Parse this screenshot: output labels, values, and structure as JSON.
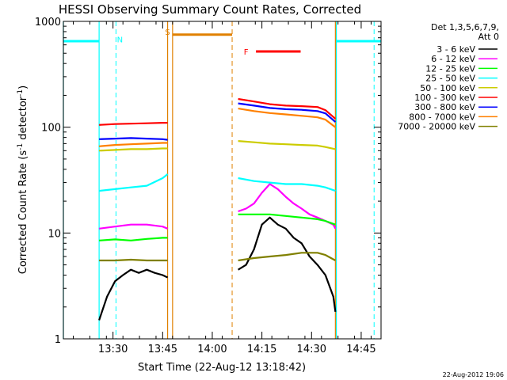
{
  "chart_data": {
    "type": "line",
    "title": "HESSI Observing Summary Count Rates, Corrected",
    "xlabel": "Start Time (22-Aug-12 13:18:42)",
    "ylabel_main": "Corrected Count Rate (s",
    "ylabel_sup1": "-1",
    "ylabel_mid": " detector",
    "ylabel_sup2": "-1",
    "ylabel_end": ")",
    "y_scale": "log",
    "ylim": [
      1,
      1000
    ],
    "x_range_min": [
      13.25,
      14.85
    ],
    "y_ticks": [
      {
        "value": 1,
        "label": "1"
      },
      {
        "value": 10,
        "label": "10"
      },
      {
        "value": 100,
        "label": "100"
      },
      {
        "value": 1000,
        "label": "1000"
      }
    ],
    "x_ticks": [
      {
        "value": 13.5,
        "label": "13:30"
      },
      {
        "value": 13.75,
        "label": "13:45"
      },
      {
        "value": 14.0,
        "label": "14:00"
      },
      {
        "value": 14.25,
        "label": "14:15"
      },
      {
        "value": 14.5,
        "label": "14:30"
      },
      {
        "value": 14.75,
        "label": "14:45"
      }
    ],
    "legend_header": [
      "Det 1,3,5,6,7,9,",
      "Att 0"
    ],
    "legend_position": "right",
    "series": [
      {
        "name": "3 - 6 keV",
        "color": "#000000",
        "segments": [
          {
            "x": [
              13.43,
              13.47,
              13.51,
              13.55,
              13.59,
              13.63,
              13.67,
              13.71,
              13.75,
              13.775
            ],
            "y": [
              1.5,
              2.5,
              3.5,
              4.0,
              4.5,
              4.2,
              4.5,
              4.2,
              4.0,
              3.8
            ]
          },
          {
            "x": [
              14.13,
              14.17,
              14.21,
              14.25,
              14.29,
              14.33,
              14.37,
              14.41,
              14.45,
              14.49,
              14.53,
              14.57,
              14.61,
              14.62
            ],
            "y": [
              4.5,
              5.0,
              7.0,
              12.0,
              14.0,
              12.0,
              11.0,
              9.0,
              8.0,
              6.0,
              5.0,
              4.0,
              2.5,
              1.8
            ]
          }
        ]
      },
      {
        "name": "6 - 12 keV",
        "color": "#ff00ff",
        "segments": [
          {
            "x": [
              13.43,
              13.51,
              13.59,
              13.67,
              13.75,
              13.775
            ],
            "y": [
              11,
              11.5,
              12,
              12,
              11.5,
              11
            ]
          },
          {
            "x": [
              14.13,
              14.17,
              14.21,
              14.25,
              14.29,
              14.33,
              14.37,
              14.41,
              14.45,
              14.49,
              14.53,
              14.57,
              14.61,
              14.62
            ],
            "y": [
              16,
              17,
              19,
              24,
              29,
              26,
              22,
              19,
              17,
              15,
              14,
              13,
              12,
              11
            ]
          }
        ]
      },
      {
        "name": "12 - 25 keV",
        "color": "#00ff00",
        "segments": [
          {
            "x": [
              13.43,
              13.51,
              13.59,
              13.67,
              13.75,
              13.775
            ],
            "y": [
              8.5,
              8.7,
              8.5,
              8.8,
              9.0,
              9.0
            ]
          },
          {
            "x": [
              14.13,
              14.21,
              14.29,
              14.37,
              14.45,
              14.53,
              14.57,
              14.62
            ],
            "y": [
              15,
              15,
              15,
              14.5,
              14,
              13.5,
              13,
              12
            ]
          }
        ]
      },
      {
        "name": "25 - 50 keV",
        "color": "#00ffff",
        "segments": [
          {
            "x": [
              13.43,
              13.51,
              13.59,
              13.67,
              13.75,
              13.775
            ],
            "y": [
              25,
              26,
              27,
              28,
              33,
              36
            ]
          },
          {
            "x": [
              14.13,
              14.21,
              14.29,
              14.37,
              14.45,
              14.53,
              14.57,
              14.62
            ],
            "y": [
              33,
              31,
              30,
              29,
              29,
              28,
              27,
              25
            ]
          }
        ]
      },
      {
        "name": "50 - 100 keV",
        "color": "#cccc00",
        "segments": [
          {
            "x": [
              13.43,
              13.51,
              13.59,
              13.67,
              13.75,
              13.775
            ],
            "y": [
              60,
              61,
              62,
              62,
              63,
              63
            ]
          },
          {
            "x": [
              14.13,
              14.21,
              14.29,
              14.37,
              14.45,
              14.53,
              14.57,
              14.62
            ],
            "y": [
              74,
              72,
              70,
              69,
              68,
              67,
              65,
              62
            ]
          }
        ]
      },
      {
        "name": "100 - 300 keV",
        "color": "#ff0000",
        "segments": [
          {
            "x": [
              13.43,
              13.51,
              13.59,
              13.67,
              13.75,
              13.775
            ],
            "y": [
              105,
              107,
              108,
              109,
              110,
              110
            ]
          },
          {
            "x": [
              14.13,
              14.21,
              14.29,
              14.37,
              14.45,
              14.53,
              14.57,
              14.62
            ],
            "y": [
              185,
              175,
              165,
              160,
              158,
              155,
              145,
              120
            ]
          }
        ]
      },
      {
        "name": "300 - 800 keV",
        "color": "#0000ff",
        "segments": [
          {
            "x": [
              13.43,
              13.51,
              13.59,
              13.67,
              13.75,
              13.775
            ],
            "y": [
              77,
              78,
              79,
              78,
              77,
              76
            ]
          },
          {
            "x": [
              14.13,
              14.21,
              14.29,
              14.37,
              14.45,
              14.53,
              14.57,
              14.62
            ],
            "y": [
              168,
              160,
              152,
              148,
              146,
              142,
              135,
              112
            ]
          }
        ]
      },
      {
        "name": "800 - 7000 keV",
        "color": "#ff8000",
        "segments": [
          {
            "x": [
              13.43,
              13.51,
              13.59,
              13.67,
              13.75,
              13.775
            ],
            "y": [
              66,
              68,
              69,
              70,
              71,
              71
            ]
          },
          {
            "x": [
              14.13,
              14.21,
              14.29,
              14.37,
              14.45,
              14.53,
              14.57,
              14.62
            ],
            "y": [
              150,
              142,
              136,
              132,
              128,
              124,
              118,
              100
            ]
          }
        ]
      },
      {
        "name": "7000 - 20000 keV",
        "color": "#808000",
        "segments": [
          {
            "x": [
              13.43,
              13.51,
              13.59,
              13.67,
              13.75,
              13.775
            ],
            "y": [
              5.5,
              5.5,
              5.6,
              5.5,
              5.5,
              5.5
            ]
          },
          {
            "x": [
              14.13,
              14.21,
              14.29,
              14.37,
              14.45,
              14.53,
              14.57,
              14.62
            ],
            "y": [
              5.5,
              5.8,
              6.0,
              6.2,
              6.5,
              6.5,
              6.2,
              5.5
            ]
          }
        ]
      }
    ],
    "flags": [
      {
        "label": "N",
        "color": "#00ffff",
        "solid_x": [
          13.25,
          13.43
        ],
        "solid_y": 650,
        "label_x": 13.535,
        "label_y": 680,
        "dashed_x": 13.515
      },
      {
        "label": "S",
        "color": "#e08000",
        "solid_x": [
          13.8,
          14.1
        ],
        "solid_y": 750,
        "label_x": 13.775,
        "label_y": 800,
        "dashed_x": 14.1
      },
      {
        "label": "F",
        "color": "#ff0000",
        "solid_x": [
          14.22,
          14.445
        ],
        "solid_y": 520,
        "label_x": 14.17,
        "label_y": 520,
        "dashed_x": null
      },
      {
        "label": "",
        "color": "#00ffff",
        "solid_x": [
          14.625,
          14.85
        ],
        "solid_y": 650,
        "label_x": null,
        "label_y": null,
        "dashed_x": 14.815
      }
    ],
    "vlines_solid": [
      {
        "x": 13.25,
        "color": "#00ffff"
      },
      {
        "x": 13.43,
        "color": "#00ffff"
      },
      {
        "x": 13.775,
        "color": "#e08000"
      },
      {
        "x": 13.8,
        "color": "#e08000"
      },
      {
        "x": 14.62,
        "color": "#e08000"
      },
      {
        "x": 14.625,
        "color": "#00ffff"
      }
    ],
    "timestamp": "22-Aug-2012 19:06"
  }
}
